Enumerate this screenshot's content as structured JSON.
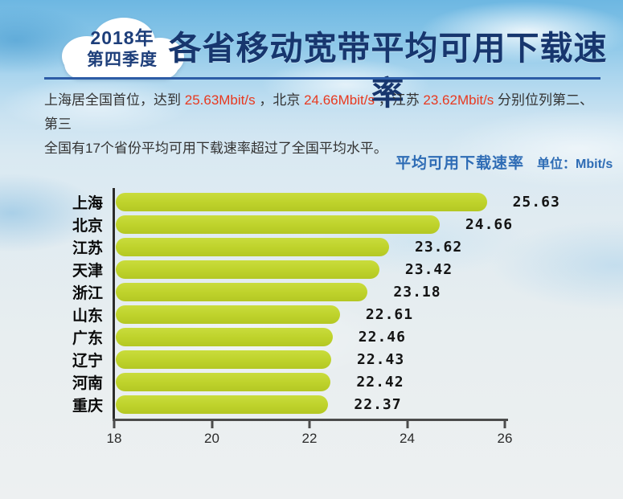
{
  "header": {
    "badge": {
      "line1": "2018年",
      "line2": "第四季度"
    },
    "title": "各省移动宽带平均可用下载速率"
  },
  "intro": {
    "lines": [
      {
        "segments": [
          {
            "text": "上海居全国首位，达到 ",
            "style": "normal"
          },
          {
            "text": "25.63Mbit/s",
            "style": "red"
          },
          {
            "text": " ，北京 ",
            "style": "normal"
          },
          {
            "text": "24.66Mbit/s",
            "style": "red"
          },
          {
            "text": " ，江苏 ",
            "style": "normal"
          },
          {
            "text": "23.62Mbit/s",
            "style": "red"
          },
          {
            "text": " 分别位列第二、第三",
            "style": "normal"
          }
        ]
      },
      {
        "segments": [
          {
            "text": "全国有17个省份平均可用下载速率超过了全国平均水平。",
            "style": "normal"
          }
        ]
      }
    ]
  },
  "chart_header": {
    "title": "平均可用下载速率",
    "unit_label": "单位：Mbit/s"
  },
  "chart_data": {
    "type": "bar",
    "orientation": "horizontal",
    "title": "平均可用下载速率",
    "unit": "Mbit/s",
    "categories": [
      "上海",
      "北京",
      "江苏",
      "天津",
      "浙江",
      "山东",
      "广东",
      "辽宁",
      "河南",
      "重庆"
    ],
    "values": [
      25.63,
      24.66,
      23.62,
      23.42,
      23.18,
      22.61,
      22.46,
      22.43,
      22.42,
      22.37
    ],
    "xlim": [
      18,
      26
    ],
    "x_ticks": [
      18,
      20,
      22,
      24,
      26
    ],
    "grid": false,
    "value_labels": true,
    "bar_color": "#bed22b"
  },
  "colors": {
    "title_navy": "#17366e",
    "divider_blue": "#2d5ca6",
    "accent_red": "#e8391f",
    "subtitle_blue": "#2e6cb5",
    "bar_green": "#bed22b"
  }
}
